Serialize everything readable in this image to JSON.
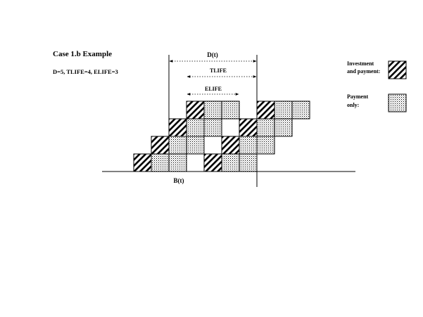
{
  "title": "Case 1.b Example",
  "params": "D=5, TLIFE=4, ELIFE=3",
  "dims": {
    "d_label": "D(t)",
    "tlife_label": "TLIFE",
    "elife_label": "ELIFE",
    "b_label": "B(t)"
  },
  "legend": {
    "investment_line1": "Investment",
    "investment_line2": "and payment:",
    "payment_line1": "Payment",
    "payment_line2": "only:"
  },
  "grid": {
    "columns_from_left": 11,
    "rows_from_bottom": 4,
    "cells": [
      {
        "row": 0,
        "col": 0,
        "kind": "investment"
      },
      {
        "row": 0,
        "col": 1,
        "kind": "payment"
      },
      {
        "row": 0,
        "col": 2,
        "kind": "payment"
      },
      {
        "row": 0,
        "col": 4,
        "kind": "investment"
      },
      {
        "row": 0,
        "col": 5,
        "kind": "payment"
      },
      {
        "row": 0,
        "col": 6,
        "kind": "payment"
      },
      {
        "row": 1,
        "col": 1,
        "kind": "investment"
      },
      {
        "row": 1,
        "col": 2,
        "kind": "payment"
      },
      {
        "row": 1,
        "col": 3,
        "kind": "payment"
      },
      {
        "row": 1,
        "col": 5,
        "kind": "investment"
      },
      {
        "row": 1,
        "col": 6,
        "kind": "payment"
      },
      {
        "row": 1,
        "col": 7,
        "kind": "payment"
      },
      {
        "row": 2,
        "col": 2,
        "kind": "investment"
      },
      {
        "row": 2,
        "col": 3,
        "kind": "payment"
      },
      {
        "row": 2,
        "col": 4,
        "kind": "payment"
      },
      {
        "row": 2,
        "col": 6,
        "kind": "investment"
      },
      {
        "row": 2,
        "col": 7,
        "kind": "payment"
      },
      {
        "row": 2,
        "col": 8,
        "kind": "payment"
      },
      {
        "row": 3,
        "col": 3,
        "kind": "investment"
      },
      {
        "row": 3,
        "col": 4,
        "kind": "payment"
      },
      {
        "row": 3,
        "col": 5,
        "kind": "payment"
      },
      {
        "row": 3,
        "col": 7,
        "kind": "investment"
      },
      {
        "row": 3,
        "col": 8,
        "kind": "payment"
      },
      {
        "row": 3,
        "col": 9,
        "kind": "payment"
      }
    ]
  }
}
